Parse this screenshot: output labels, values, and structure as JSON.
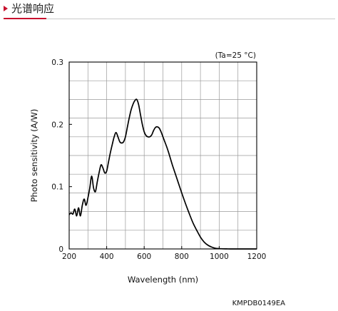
{
  "header": {
    "title": "光谱响应"
  },
  "chart_data": {
    "type": "line",
    "title": "",
    "xlabel": "Wavelength (nm)",
    "ylabel": "Photo sensitivity (A/W)",
    "annotation": "(Ta=25 °C)",
    "xlim": [
      200,
      1200
    ],
    "ylim": [
      0,
      0.3
    ],
    "x_ticks": [
      200,
      400,
      600,
      800,
      1000,
      1200
    ],
    "x_tick_labels": [
      "200",
      "400",
      "600",
      "800",
      "1000",
      "1200"
    ],
    "y_ticks": [
      0,
      0.1,
      0.2,
      0.3
    ],
    "y_tick_labels": [
      "0",
      "0.1",
      "0.2",
      "0.3"
    ],
    "grid": true,
    "series": [
      {
        "color": "#000000",
        "x": [
          200,
          210,
          220,
          230,
          240,
          250,
          260,
          270,
          280,
          290,
          300,
          310,
          320,
          330,
          340,
          350,
          360,
          370,
          380,
          390,
          400,
          410,
          420,
          430,
          440,
          450,
          460,
          470,
          480,
          490,
          500,
          510,
          520,
          530,
          540,
          550,
          560,
          570,
          580,
          590,
          600,
          610,
          620,
          630,
          640,
          650,
          660,
          670,
          680,
          690,
          700,
          710,
          720,
          730,
          740,
          750,
          760,
          780,
          800,
          820,
          840,
          860,
          880,
          900,
          920,
          940,
          960,
          980,
          1000,
          1020,
          1040,
          1060,
          1080,
          1100,
          1120,
          1140,
          1160,
          1180,
          1200
        ],
        "y": [
          0.055,
          0.058,
          0.056,
          0.064,
          0.053,
          0.066,
          0.053,
          0.07,
          0.08,
          0.07,
          0.082,
          0.098,
          0.117,
          0.098,
          0.092,
          0.108,
          0.123,
          0.135,
          0.13,
          0.122,
          0.125,
          0.14,
          0.155,
          0.168,
          0.18,
          0.187,
          0.18,
          0.172,
          0.17,
          0.172,
          0.18,
          0.195,
          0.21,
          0.223,
          0.232,
          0.238,
          0.24,
          0.232,
          0.216,
          0.2,
          0.188,
          0.182,
          0.18,
          0.18,
          0.183,
          0.19,
          0.195,
          0.196,
          0.194,
          0.188,
          0.18,
          0.172,
          0.164,
          0.155,
          0.145,
          0.135,
          0.126,
          0.108,
          0.09,
          0.073,
          0.057,
          0.042,
          0.03,
          0.019,
          0.011,
          0.006,
          0.003,
          0.001,
          0.0005,
          0.0002,
          0.0001,
          0.0,
          0.0,
          0.0,
          0.0,
          0.0,
          0.0,
          0.0,
          0.0
        ]
      }
    ]
  },
  "figure_code": "KMPDB0149EA"
}
